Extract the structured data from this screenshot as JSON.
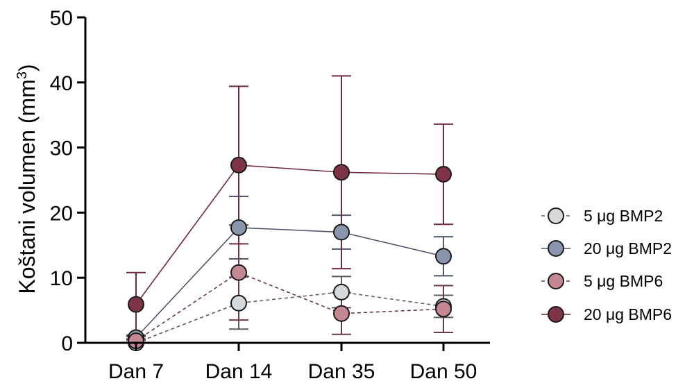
{
  "chart_data": {
    "type": "line",
    "categories": [
      "Dan 7",
      "Dan 14",
      "Dan 35",
      "Dan 50"
    ],
    "ylabel": "Koštani volumen (mm",
    "ylabel_sup": "3",
    "ylabel_close": ")",
    "ylim": [
      0,
      50
    ],
    "yticks": [
      "0",
      "10",
      "20",
      "30",
      "40",
      "50"
    ],
    "grid": false,
    "legend_position": "right",
    "series": [
      {
        "name": "5 μg BMP2",
        "values": [
          0,
          6.1,
          7.8,
          5.6
        ],
        "err": [
          0,
          4.0,
          2.4,
          1.7
        ],
        "color": "#d6d9dc",
        "dashed": true
      },
      {
        "name": "20 μg BMP2",
        "values": [
          0.8,
          17.7,
          17.0,
          13.3
        ],
        "err": [
          0.4,
          4.8,
          2.6,
          3.0
        ],
        "color": "#8a96ad",
        "dashed": false
      },
      {
        "name": "5 μg BMP6",
        "values": [
          0.3,
          10.8,
          4.5,
          5.2
        ],
        "err": [
          0.3,
          7.3,
          3.2,
          3.6
        ],
        "color": "#c48893",
        "dashed": true
      },
      {
        "name": "20 μg BMP6",
        "values": [
          5.9,
          27.3,
          26.2,
          25.9
        ],
        "err": [
          4.9,
          12.1,
          14.8,
          7.7
        ],
        "color": "#7e3446",
        "dashed": false
      }
    ]
  }
}
